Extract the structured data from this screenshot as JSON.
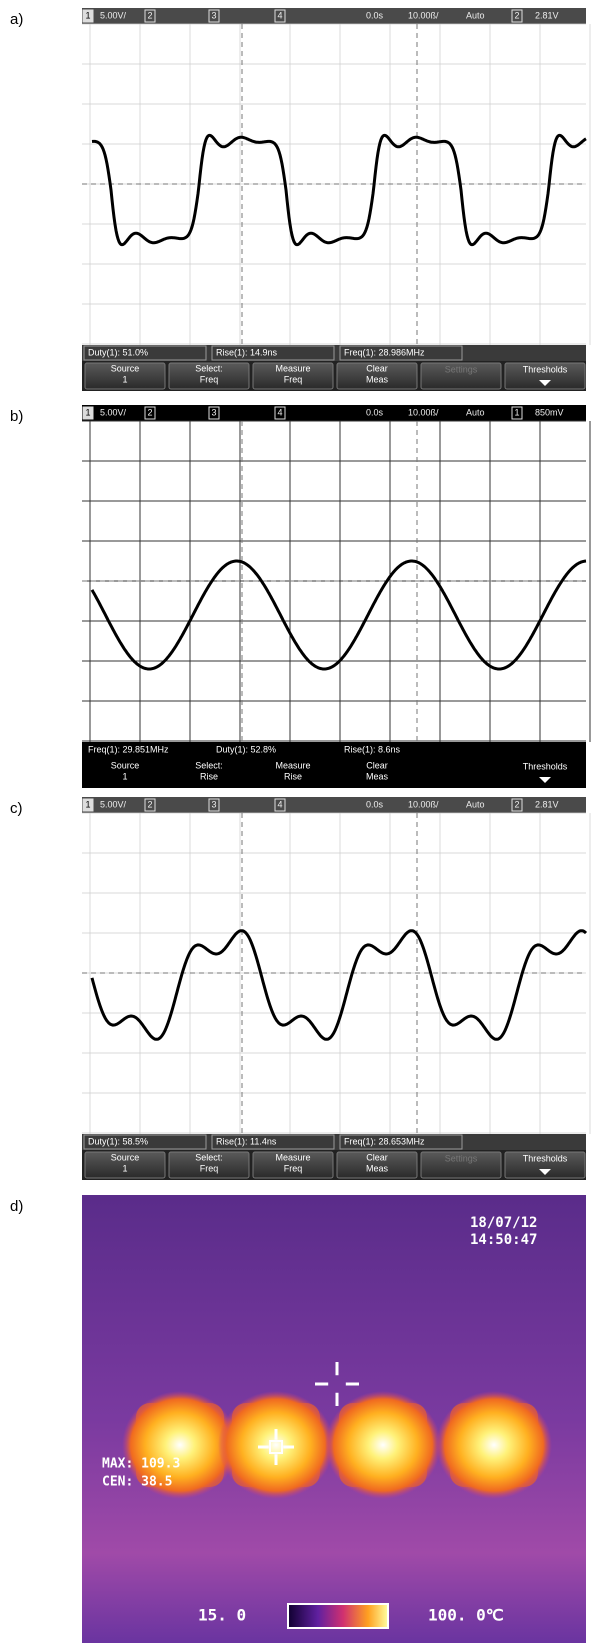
{
  "panels": [
    {
      "label": "a)",
      "top_bar": [
        "1",
        "5.00V/",
        "2",
        "3",
        "4",
        "0.0s",
        "10.00ß/",
        "Auto",
        "2",
        "2.81V"
      ],
      "measurements": [
        "Duty(1): 51.0%",
        "Rise(1): 14.9ns",
        "Freq(1): 28.986MHz"
      ],
      "softkeys": [
        [
          "Source",
          "1"
        ],
        [
          "Select:",
          "Freq"
        ],
        [
          "Measure",
          "Freq"
        ],
        [
          "Clear",
          "Meas"
        ],
        [
          "Settings"
        ],
        [
          "Thresholds"
        ]
      ]
    },
    {
      "label": "b)",
      "top_bar": [
        "1",
        "5.00V/",
        "2",
        "3",
        "4",
        "0.0s",
        "10.00ß/",
        "Auto",
        "1",
        "850mV"
      ],
      "measurements": [
        "Freq(1): 29.851MHz",
        "Duty(1): 52.8%",
        "Rise(1): 8.6ns"
      ],
      "softkeys": [
        [
          "Source",
          "1"
        ],
        [
          "Select:",
          "Rise"
        ],
        [
          "Measure",
          "Rise"
        ],
        [
          "Clear",
          "Meas"
        ],
        null,
        [
          "Thresholds"
        ]
      ]
    },
    {
      "label": "c)",
      "top_bar": [
        "1",
        "5.00V/",
        "2",
        "3",
        "4",
        "0.0s",
        "10.00ß/",
        "Auto",
        "2",
        "2.81V"
      ],
      "measurements": [
        "Duty(1): 58.5%",
        "Rise(1): 11.4ns",
        "Freq(1): 28.653MHz"
      ],
      "softkeys": [
        [
          "Source",
          "1"
        ],
        [
          "Select:",
          "Freq"
        ],
        [
          "Measure",
          "Freq"
        ],
        [
          "Clear",
          "Meas"
        ],
        [
          "Settings"
        ],
        [
          "Thresholds"
        ]
      ]
    }
  ],
  "thermal": {
    "label": "d)",
    "date": "18/07/12",
    "time": "14:50:47",
    "max": "MAX: 109.3",
    "cen": "CEN: 38.5",
    "scale_min": "15. 0",
    "scale_max": "100. 0℃"
  }
}
